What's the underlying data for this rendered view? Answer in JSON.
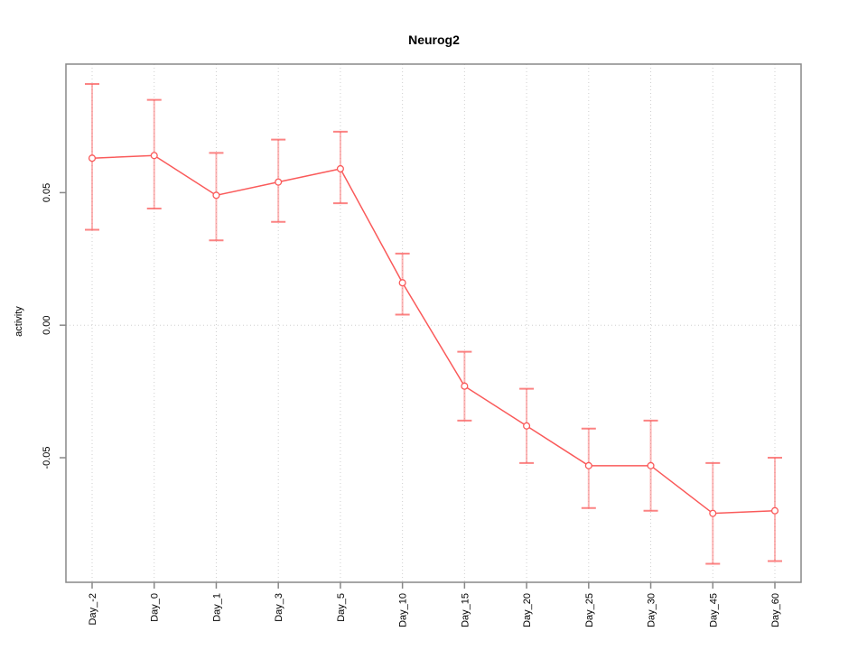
{
  "chart_data": {
    "type": "line",
    "title": "Neurog2",
    "xlabel": "",
    "ylabel": "activity",
    "categories": [
      "Day_-2",
      "Day_0",
      "Day_1",
      "Day_3",
      "Day_5",
      "Day_10",
      "Day_15",
      "Day_20",
      "Day_25",
      "Day_30",
      "Day_45",
      "Day_60"
    ],
    "series": [
      {
        "name": "activity",
        "values": [
          0.063,
          0.064,
          0.049,
          0.054,
          0.059,
          0.016,
          -0.023,
          -0.038,
          -0.053,
          -0.053,
          -0.071,
          -0.07
        ],
        "upper": [
          0.091,
          0.085,
          0.065,
          0.07,
          0.073,
          0.027,
          -0.01,
          -0.024,
          -0.039,
          -0.036,
          -0.052,
          -0.05
        ],
        "lower": [
          0.036,
          0.044,
          0.032,
          0.039,
          0.046,
          0.004,
          -0.036,
          -0.052,
          -0.069,
          -0.07,
          -0.09,
          -0.089
        ]
      }
    ],
    "y_ticks": [
      0.05,
      0,
      -0.05
    ],
    "y_tick_labels": [
      "0.05",
      "0.00",
      "-0.05"
    ],
    "ylim": [
      -0.097,
      0.0985
    ],
    "grid": "vertical dotted line at every x tick; horizontal dotted line at y=0",
    "legend": "none",
    "marker": "open-circle",
    "colors": {
      "line": "#fa5a5a",
      "error_bar": "#fa5a5a",
      "error_bar_opacity": 0.45,
      "error_cap_opacity": 0.75,
      "gridline": "#cfcfcf",
      "frame": "#888888",
      "text": "#000000",
      "background": "#ffffff"
    }
  }
}
